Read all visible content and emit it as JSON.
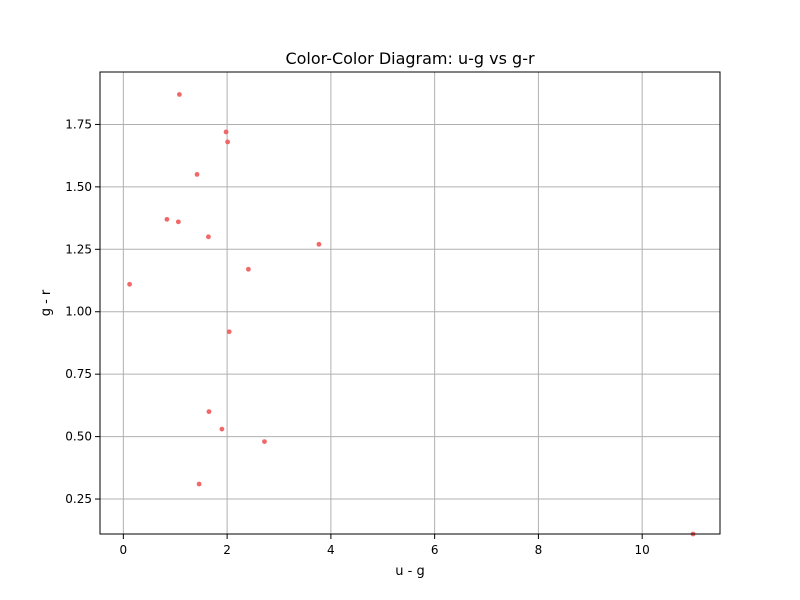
{
  "chart_data": {
    "type": "scatter",
    "title": "Color-Color Diagram: u-g vs g-r",
    "xlabel": "u - g",
    "ylabel": "g - r",
    "xlim": [
      -0.45,
      11.5
    ],
    "ylim": [
      0.11,
      1.96
    ],
    "x_ticks": [
      0,
      2,
      4,
      6,
      8,
      10
    ],
    "y_ticks": [
      0.25,
      0.5,
      0.75,
      1.0,
      1.25,
      1.5,
      1.75
    ],
    "x_tick_labels": [
      "0",
      "2",
      "4",
      "6",
      "8",
      "10"
    ],
    "y_tick_labels": [
      "0.25",
      "0.50",
      "0.75",
      "1.00",
      "1.25",
      "1.50",
      "1.75"
    ],
    "grid": true,
    "marker_color": "#f06060",
    "points": [
      {
        "x": 1.08,
        "y": 1.87
      },
      {
        "x": 1.98,
        "y": 1.72
      },
      {
        "x": 2.01,
        "y": 1.68
      },
      {
        "x": 1.42,
        "y": 1.55
      },
      {
        "x": 0.84,
        "y": 1.37
      },
      {
        "x": 1.06,
        "y": 1.36
      },
      {
        "x": 1.64,
        "y": 1.3
      },
      {
        "x": 3.77,
        "y": 1.27
      },
      {
        "x": 2.41,
        "y": 1.17
      },
      {
        "x": 0.12,
        "y": 1.11
      },
      {
        "x": 2.04,
        "y": 0.92
      },
      {
        "x": 1.65,
        "y": 0.6
      },
      {
        "x": 1.9,
        "y": 0.53
      },
      {
        "x": 2.72,
        "y": 0.48
      },
      {
        "x": 1.46,
        "y": 0.31
      },
      {
        "x": 10.98,
        "y": 0.11
      }
    ]
  }
}
